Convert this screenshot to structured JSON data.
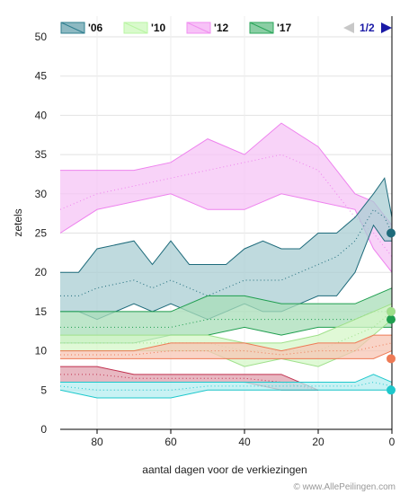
{
  "chart_data": {
    "type": "area",
    "xlabel": "aantal dagen voor de verkiezingen",
    "ylabel": "zetels",
    "xlim": [
      90,
      0
    ],
    "ylim": [
      0,
      50
    ],
    "x_ticks": [
      "80",
      "60",
      "40",
      "20",
      "0"
    ],
    "y_ticks": [
      "0",
      "5",
      "10",
      "15",
      "20",
      "25",
      "30",
      "35",
      "40",
      "45",
      "50"
    ],
    "grid": true,
    "legend_position": "top",
    "legend": [
      {
        "label": "'06",
        "color": "#2f7f8f"
      },
      {
        "label": "'10",
        "color": "#b9f5a3"
      },
      {
        "label": "'12",
        "color": "#f08ff0"
      },
      {
        "label": "'17",
        "color": "#2aa55a"
      }
    ],
    "pager": "1/2",
    "credit": "© www.AllePeilingen.com",
    "series": [
      {
        "name": "'12",
        "band": true,
        "color": "#ee82ee",
        "fill": "#f6c4f6",
        "end_value": 15,
        "x": [
          90,
          80,
          70,
          60,
          50,
          40,
          30,
          20,
          10,
          5,
          0
        ],
        "low": [
          25,
          28,
          29,
          30,
          28,
          28,
          30,
          29,
          28,
          23,
          20
        ],
        "high": [
          33,
          33,
          33,
          34,
          37,
          35,
          39,
          36,
          30,
          29,
          26
        ],
        "mid": [
          28,
          30,
          31,
          32,
          33,
          34,
          35,
          33,
          27,
          25,
          22
        ]
      },
      {
        "name": "'06",
        "band": true,
        "color": "#1e6b7b",
        "fill": "#a9cdd3",
        "end_value": 25,
        "x": [
          90,
          85,
          80,
          70,
          65,
          60,
          55,
          50,
          45,
          40,
          35,
          30,
          25,
          20,
          15,
          10,
          5,
          2,
          0
        ],
        "low": [
          15,
          15,
          14,
          16,
          15,
          16,
          15,
          14,
          15,
          16,
          15,
          15,
          16,
          17,
          17,
          20,
          26,
          24,
          24
        ],
        "high": [
          20,
          20,
          23,
          24,
          21,
          24,
          21,
          21,
          21,
          23,
          24,
          23,
          23,
          25,
          25,
          27,
          30,
          32,
          27
        ],
        "mid": [
          17,
          17,
          18,
          19,
          18,
          19,
          18,
          17,
          18,
          19,
          19,
          19,
          20,
          21,
          22,
          24,
          28,
          27,
          25
        ]
      },
      {
        "name": "'17",
        "band": true,
        "color": "#1f9e4f",
        "fill": "#a8ddb8",
        "end_value": 14,
        "x": [
          90,
          80,
          70,
          60,
          50,
          40,
          30,
          20,
          10,
          5,
          0
        ],
        "low": [
          11,
          11,
          11,
          12,
          12,
          13,
          12,
          13,
          13,
          13,
          13
        ],
        "high": [
          15,
          15,
          15,
          15,
          17,
          17,
          16,
          16,
          16,
          17,
          18
        ],
        "mid": [
          13,
          13,
          13,
          13,
          14,
          14,
          14,
          14,
          14,
          15,
          15
        ]
      },
      {
        "name": "'10",
        "band": true,
        "color": "#9fe08a",
        "fill": "#d5f7c8",
        "end_value": 15,
        "x": [
          90,
          80,
          70,
          60,
          50,
          40,
          30,
          20,
          10,
          5,
          0
        ],
        "low": [
          10,
          10,
          10,
          10,
          10,
          8,
          9,
          8,
          10,
          12,
          14
        ],
        "high": [
          12,
          12,
          12,
          12,
          12,
          11,
          11,
          12,
          14,
          15,
          16
        ],
        "mid": [
          11,
          11,
          11,
          11,
          11,
          10,
          10,
          10,
          12,
          13,
          15
        ]
      },
      {
        "name": "",
        "band": true,
        "color": "#ee7a55",
        "fill": "#f7c6b4",
        "end_value": 9,
        "x": [
          90,
          80,
          70,
          60,
          50,
          40,
          30,
          20,
          10,
          5,
          0
        ],
        "low": [
          9,
          9,
          9,
          9,
          9,
          9,
          9,
          9,
          9,
          9,
          10
        ],
        "high": [
          10,
          10,
          10,
          11,
          11,
          11,
          10,
          11,
          11,
          12,
          12
        ],
        "mid": [
          9.5,
          9.5,
          9.5,
          10,
          10,
          10,
          9.5,
          10,
          10,
          10.5,
          11
        ]
      },
      {
        "name": "",
        "band": true,
        "color": "#c0304e",
        "fill": "#e0a0ae",
        "end_value": null,
        "x": [
          90,
          80,
          70,
          60,
          50,
          40,
          30,
          20
        ],
        "low": [
          6,
          6,
          6,
          6,
          6,
          6,
          5,
          5
        ],
        "high": [
          8,
          8,
          7,
          7,
          7,
          7,
          7,
          5
        ],
        "mid": [
          7,
          7,
          6.5,
          6.5,
          6.5,
          6.5,
          6,
          5
        ]
      },
      {
        "name": "",
        "band": true,
        "color": "#1ec8cc",
        "fill": "#b6eef0",
        "end_value": 5,
        "x": [
          90,
          80,
          70,
          60,
          50,
          40,
          30,
          20,
          10,
          5,
          0
        ],
        "low": [
          5,
          4,
          4,
          4,
          5,
          5,
          5,
          5,
          5,
          5,
          5
        ],
        "high": [
          6,
          6,
          6,
          6,
          6,
          6,
          6,
          6,
          6,
          7,
          6
        ],
        "mid": [
          5.5,
          5,
          5,
          5,
          5.5,
          5.5,
          5.5,
          5.5,
          5.5,
          6,
          5.5
        ]
      }
    ]
  }
}
